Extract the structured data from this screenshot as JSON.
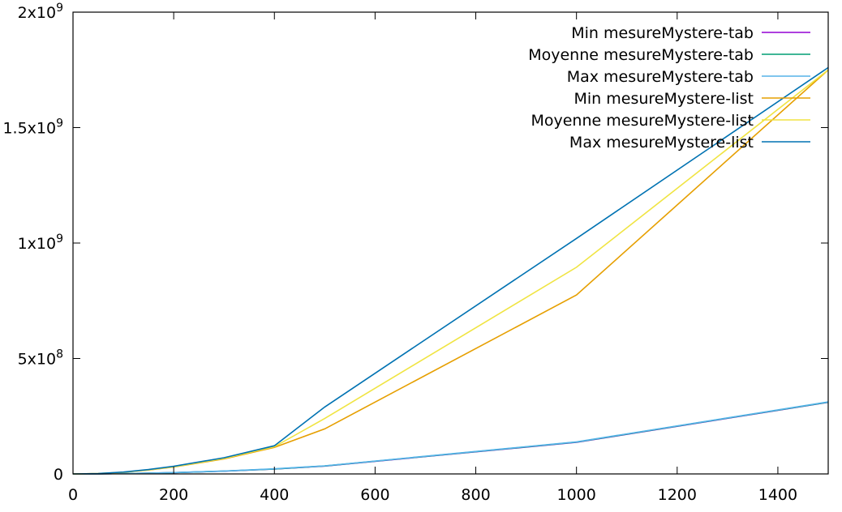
{
  "chart_data": {
    "type": "line",
    "title": "",
    "xlabel": "",
    "ylabel": "",
    "xlim": [
      0,
      1500
    ],
    "ylim": [
      0,
      2000000000
    ],
    "x_ticks": [
      0,
      200,
      400,
      600,
      800,
      1000,
      1200,
      1400
    ],
    "y_ticks": [
      {
        "value": 0,
        "base": "0",
        "exp": ""
      },
      {
        "value": 500000000,
        "base": "5x10",
        "exp": "8"
      },
      {
        "value": 1000000000,
        "base": "1x10",
        "exp": "9"
      },
      {
        "value": 1500000000,
        "base": "1.5x10",
        "exp": "9"
      },
      {
        "value": 2000000000,
        "base": "2x10",
        "exp": "9"
      }
    ],
    "grid": false,
    "legend_position": "top-right",
    "series": [
      {
        "name": "Min mesureMystere-tab",
        "color": "#9400d3",
        "x": [
          0,
          50,
          100,
          150,
          200,
          300,
          400,
          500,
          1000,
          1500
        ],
        "y": [
          0,
          300000,
          1300000,
          3000000,
          5500000,
          12000000,
          21000000,
          34000000,
          137000000,
          310000000
        ]
      },
      {
        "name": "Moyenne mesureMystere-tab",
        "color": "#009e73",
        "x": [
          0,
          50,
          100,
          150,
          200,
          300,
          400,
          500,
          1000,
          1500
        ],
        "y": [
          0,
          310000,
          1350000,
          3100000,
          5600000,
          12300000,
          21500000,
          34500000,
          138000000,
          311000000
        ]
      },
      {
        "name": "Max mesureMystere-tab",
        "color": "#56b4e9",
        "x": [
          0,
          50,
          100,
          150,
          200,
          300,
          400,
          500,
          1000,
          1500
        ],
        "y": [
          0,
          330000,
          1400000,
          3200000,
          5800000,
          12600000,
          22000000,
          35000000,
          139000000,
          312000000
        ]
      },
      {
        "name": "Min mesureMystere-list",
        "color": "#e69f00",
        "x": [
          0,
          50,
          100,
          150,
          200,
          300,
          400,
          500,
          1000,
          1500
        ],
        "y": [
          0,
          1500000,
          7000000,
          17000000,
          30000000,
          65000000,
          115000000,
          195000000,
          775000000,
          1750000000
        ]
      },
      {
        "name": "Moyenne mesureMystere-list",
        "color": "#f0e442",
        "x": [
          0,
          50,
          100,
          150,
          200,
          300,
          400,
          500,
          1000,
          1500
        ],
        "y": [
          0,
          1600000,
          7500000,
          18000000,
          31000000,
          67000000,
          118000000,
          240000000,
          895000000,
          1750000000
        ]
      },
      {
        "name": "Max mesureMystere-list",
        "color": "#0072b2",
        "x": [
          0,
          50,
          100,
          150,
          200,
          300,
          400,
          500,
          1000,
          1500
        ],
        "y": [
          0,
          1700000,
          8000000,
          19000000,
          33000000,
          70000000,
          122000000,
          290000000,
          1020000000,
          1760000000
        ]
      }
    ]
  }
}
